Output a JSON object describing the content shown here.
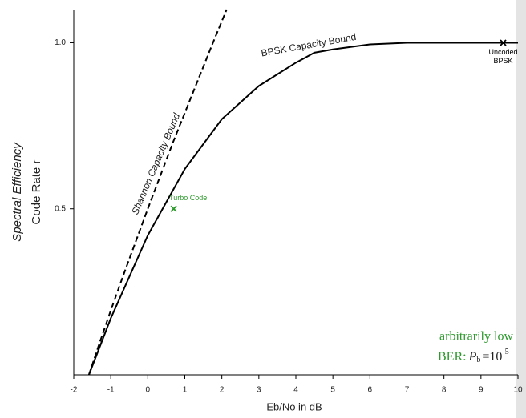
{
  "chart_data": {
    "type": "line",
    "xlabel": "Eb/No in dB",
    "ylabel": [
      "Spectral Efficiency",
      "Code Rate r"
    ],
    "xlim": [
      -2,
      10
    ],
    "ylim": [
      0,
      1.1
    ],
    "xticks": [
      -2,
      -1,
      0,
      1,
      2,
      3,
      4,
      5,
      6,
      7,
      8,
      9,
      10
    ],
    "yticks": [
      0.5,
      {
        "value": 1,
        "label": "1.0"
      }
    ],
    "series": [
      {
        "name": "Shannon Capacity Bound",
        "color": "#000000",
        "dashed": true,
        "x": [
          -1.59,
          -1.29,
          -0.98,
          -0.66,
          -0.33,
          0.0,
          0.34,
          0.68,
          1.04,
          1.4,
          1.76,
          2.13
        ],
        "values": [
          0,
          0.1,
          0.2,
          0.3,
          0.4,
          0.5,
          0.6,
          0.7,
          0.8,
          0.9,
          1.0,
          1.1
        ]
      },
      {
        "name": "BPSK Capacity Bound",
        "color": "#000000",
        "dashed": false,
        "x": [
          -1.59,
          -1,
          0,
          1,
          2,
          3,
          4,
          4.5,
          5,
          6,
          7,
          8,
          10
        ],
        "values": [
          0,
          0.17,
          0.42,
          0.62,
          0.77,
          0.87,
          0.94,
          0.97,
          0.98,
          0.995,
          1.0,
          1.0,
          1.0
        ]
      }
    ],
    "points": [
      {
        "label": [
          "Turbo Code"
        ],
        "x": 0.7,
        "y": 0.5,
        "color": "#2e9a2e"
      },
      {
        "label": [
          "Uncoded",
          "BPSK"
        ],
        "x": 9.6,
        "y": 1.0,
        "color": "#000000"
      }
    ],
    "annotations": [
      "arbitrarily low",
      "BER:",
      "P",
      "b",
      "=10",
      "-5"
    ]
  }
}
